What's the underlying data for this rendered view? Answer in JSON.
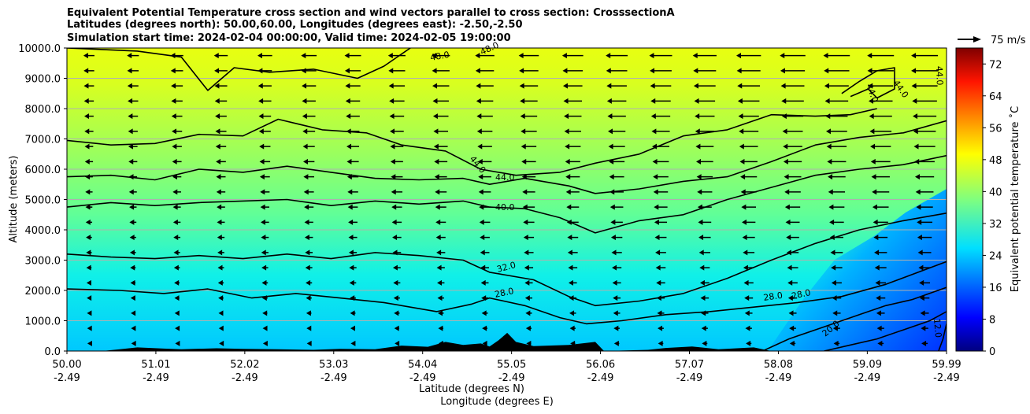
{
  "chart_data": {
    "type": "contour",
    "title_lines": [
      "Equivalent Potential Temperature cross section and wind vectors parallel to cross section: CrosssectionA",
      "Latitudes (degrees north): 50.00,60.00, Longitudes (degrees east): -2.50,-2.50",
      "Simulation start time: 2024-02-04 00:00:00, Valid time: 2024-02-05 19:00:00"
    ],
    "ylabel": "Altitude (meters)",
    "xlabel_1": "Latitude (degrees N)",
    "xlabel_2": "Longitude (degrees E)",
    "xlim": [
      50.0,
      59.99
    ],
    "ylim": [
      0,
      10000
    ],
    "x_ticks": [
      {
        "lat": "50.00",
        "lon": "-2.49",
        "value": 50.0
      },
      {
        "lat": "51.01",
        "lon": "-2.49",
        "value": 51.01
      },
      {
        "lat": "52.02",
        "lon": "-2.49",
        "value": 52.02
      },
      {
        "lat": "53.03",
        "lon": "-2.49",
        "value": 53.03
      },
      {
        "lat": "54.04",
        "lon": "-2.49",
        "value": 54.04
      },
      {
        "lat": "55.05",
        "lon": "-2.49",
        "value": 55.05
      },
      {
        "lat": "56.06",
        "lon": "-2.49",
        "value": 56.06
      },
      {
        "lat": "57.07",
        "lon": "-2.49",
        "value": 57.07
      },
      {
        "lat": "58.08",
        "lon": "-2.49",
        "value": 58.08
      },
      {
        "lat": "59.09",
        "lon": "-2.49",
        "value": 59.09
      },
      {
        "lat": "59.99",
        "lon": "-2.49",
        "value": 59.99
      }
    ],
    "y_ticks": [
      {
        "label": "0.0",
        "value": 0
      },
      {
        "label": "1000.0",
        "value": 1000
      },
      {
        "label": "2000.0",
        "value": 2000
      },
      {
        "label": "3000.0",
        "value": 3000
      },
      {
        "label": "4000.0",
        "value": 4000
      },
      {
        "label": "5000.0",
        "value": 5000
      },
      {
        "label": "6000.0",
        "value": 6000
      },
      {
        "label": "7000.0",
        "value": 7000
      },
      {
        "label": "8000.0",
        "value": 8000
      },
      {
        "label": "9000.0",
        "value": 9000
      },
      {
        "label": "10000.0",
        "value": 10000
      }
    ],
    "horizontal_grid": true,
    "colorbar": {
      "label": "Equivalent potential temperature ˚C",
      "range": [
        0,
        76
      ],
      "tick_values": [
        0,
        8,
        16,
        24,
        32,
        40,
        48,
        56,
        64,
        72
      ],
      "tick_labels": [
        "0",
        "8",
        "16",
        "24",
        "32",
        "40",
        "48",
        "56",
        "64",
        "72"
      ],
      "colormap": "jet"
    },
    "wind_key": {
      "label": "75 m/s",
      "speed": 75,
      "direction": "toward +x"
    },
    "wind_vectors": "arrows on a regular grid, mostly pointing toward lower latitude; longest in the upper-right region",
    "contour_levels_labeled": [
      "12.0",
      "20.0",
      "28.0",
      "28.0",
      "28.0",
      "32.0",
      "40.0",
      "44.0",
      "44.0",
      "44.0",
      "44.0",
      "44.0",
      "48.0",
      "48.0"
    ],
    "contours": [
      {
        "level": 28,
        "points": [
          [
            50.0,
            2050
          ],
          [
            50.6,
            2000
          ],
          [
            51.1,
            1900
          ],
          [
            51.6,
            2050
          ],
          [
            52.1,
            1750
          ],
          [
            52.6,
            1900
          ],
          [
            53.1,
            1750
          ],
          [
            53.6,
            1600
          ],
          [
            53.9,
            1450
          ],
          [
            54.2,
            1300
          ],
          [
            54.6,
            1550
          ],
          [
            54.8,
            1750
          ],
          [
            55.2,
            1500
          ],
          [
            55.6,
            1100
          ],
          [
            55.9,
            900
          ],
          [
            56.3,
            1000
          ],
          [
            56.8,
            1200
          ],
          [
            57.3,
            1300
          ],
          [
            57.8,
            1450
          ],
          [
            58.3,
            1600
          ],
          [
            58.8,
            1800
          ],
          [
            59.3,
            2200
          ],
          [
            59.99,
            2950
          ]
        ]
      },
      {
        "level": 32,
        "points": [
          [
            50.0,
            3200
          ],
          [
            50.5,
            3100
          ],
          [
            51.0,
            3050
          ],
          [
            51.5,
            3150
          ],
          [
            52.0,
            3050
          ],
          [
            52.5,
            3200
          ],
          [
            53.0,
            3050
          ],
          [
            53.5,
            3250
          ],
          [
            54.0,
            3150
          ],
          [
            54.5,
            3000
          ],
          [
            54.8,
            2600
          ],
          [
            55.3,
            2350
          ],
          [
            55.7,
            1800
          ],
          [
            56.0,
            1500
          ],
          [
            56.5,
            1650
          ],
          [
            57.0,
            1900
          ],
          [
            57.5,
            2400
          ],
          [
            58.0,
            3000
          ],
          [
            58.5,
            3550
          ],
          [
            59.0,
            4000
          ],
          [
            59.5,
            4300
          ],
          [
            59.99,
            4550
          ]
        ]
      },
      {
        "level": 40,
        "points": [
          [
            50.0,
            4750
          ],
          [
            50.5,
            4900
          ],
          [
            51.0,
            4800
          ],
          [
            51.5,
            4900
          ],
          [
            52.0,
            4950
          ],
          [
            52.5,
            5000
          ],
          [
            53.0,
            4800
          ],
          [
            53.5,
            4950
          ],
          [
            54.0,
            4850
          ],
          [
            54.5,
            4950
          ],
          [
            54.8,
            4750
          ],
          [
            55.2,
            4700
          ],
          [
            55.6,
            4400
          ],
          [
            56.0,
            3900
          ],
          [
            56.5,
            4300
          ],
          [
            57.0,
            4500
          ],
          [
            57.5,
            5000
          ],
          [
            58.0,
            5400
          ],
          [
            58.5,
            5800
          ],
          [
            59.0,
            6000
          ],
          [
            59.5,
            6150
          ],
          [
            59.99,
            6450
          ]
        ]
      },
      {
        "level": 44,
        "points": [
          [
            50.0,
            5750
          ],
          [
            50.5,
            5800
          ],
          [
            51.0,
            5650
          ],
          [
            51.5,
            6000
          ],
          [
            52.0,
            5900
          ],
          [
            52.5,
            6100
          ],
          [
            53.0,
            5900
          ],
          [
            53.5,
            5700
          ],
          [
            54.0,
            5650
          ],
          [
            54.5,
            5700
          ],
          [
            54.8,
            5500
          ],
          [
            55.2,
            5700
          ],
          [
            55.7,
            5450
          ],
          [
            56.0,
            5200
          ],
          [
            56.5,
            5350
          ],
          [
            57.0,
            5600
          ],
          [
            57.5,
            5750
          ],
          [
            58.0,
            6250
          ],
          [
            58.5,
            6800
          ],
          [
            59.0,
            7050
          ],
          [
            59.5,
            7200
          ],
          [
            59.99,
            7600
          ]
        ]
      },
      {
        "level": 44,
        "points": [
          [
            50.0,
            6950
          ],
          [
            50.5,
            6800
          ],
          [
            51.0,
            6850
          ],
          [
            51.5,
            7150
          ],
          [
            52.0,
            7100
          ],
          [
            52.4,
            7650
          ],
          [
            52.9,
            7300
          ],
          [
            53.4,
            7200
          ],
          [
            53.8,
            6800
          ],
          [
            54.3,
            6600
          ],
          [
            54.7,
            6000
          ],
          [
            55.1,
            5800
          ],
          [
            55.6,
            5900
          ],
          [
            56.0,
            6200
          ],
          [
            56.5,
            6500
          ],
          [
            57.0,
            7100
          ],
          [
            57.5,
            7300
          ],
          [
            58.0,
            7800
          ],
          [
            58.5,
            7750
          ],
          [
            58.9,
            7800
          ],
          [
            59.2,
            8000
          ]
        ]
      },
      {
        "level": 48,
        "points": [
          [
            50.0,
            10000
          ],
          [
            50.4,
            9950
          ],
          [
            50.8,
            9900
          ],
          [
            51.3,
            9700
          ],
          [
            51.6,
            8600
          ],
          [
            51.9,
            9350
          ],
          [
            52.3,
            9200
          ],
          [
            52.8,
            9300
          ],
          [
            53.3,
            9000
          ],
          [
            53.6,
            9400
          ],
          [
            53.9,
            10000
          ]
        ]
      },
      {
        "level": 44,
        "points": [
          [
            58.8,
            8500
          ],
          [
            59.0,
            8900
          ],
          [
            59.2,
            9250
          ],
          [
            59.4,
            9350
          ],
          [
            59.4,
            8650
          ],
          [
            59.2,
            8350
          ],
          [
            59.1,
            8650
          ],
          [
            58.9,
            8400
          ]
        ]
      }
    ],
    "field": "equivalent potential temperature (˚C), roughly 12–50 across the section: warmest (about 44–50) near the top, coolest (about 12–20) in the lower right corner near 59.5–60 N below 2500 m",
    "terrain": "black surface orography near 0–400 m between 50.4 and 58.0 N, highest near 55.0 N (about 600 m)"
  }
}
